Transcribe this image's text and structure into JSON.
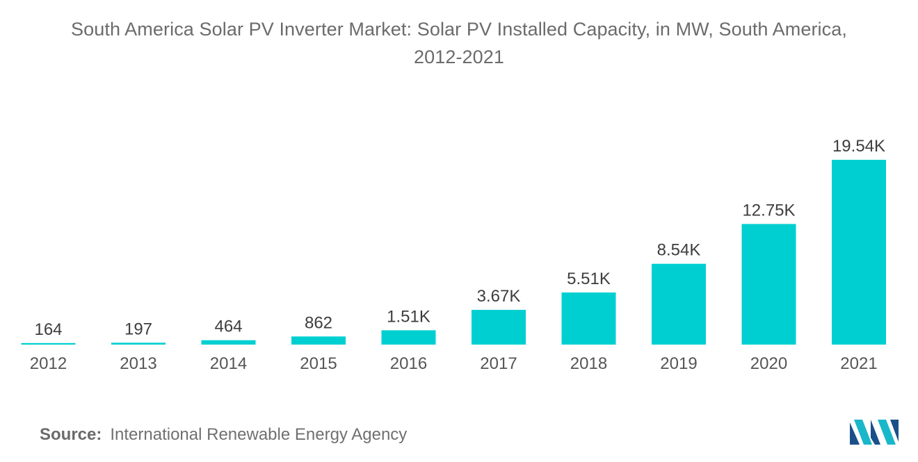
{
  "title": {
    "line1": "South America Solar PV Inverter Market: Solar PV Installed Capacity, in MW, South America,",
    "line2": "2012-2021"
  },
  "source": {
    "label": "Source:",
    "text": "International Renewable Energy Agency"
  },
  "colors": {
    "bar": "#00CFD1",
    "logo_dark": "#1b4f8a",
    "logo_light": "#19b7c9"
  },
  "logo_icon": "mordor-intelligence-logo",
  "chart_data": {
    "type": "bar",
    "title": "South America Solar PV Inverter Market: Solar PV Installed Capacity, in MW, South America, 2012-2021",
    "xlabel": "",
    "ylabel": "",
    "categories": [
      "2012",
      "2013",
      "2014",
      "2015",
      "2016",
      "2017",
      "2018",
      "2019",
      "2020",
      "2021"
    ],
    "values": [
      164,
      197,
      464,
      862,
      1510,
      3670,
      5510,
      8540,
      12750,
      19540
    ],
    "data_labels": [
      "164",
      "197",
      "464",
      "862",
      "1.51K",
      "3.67K",
      "5.51K",
      "8.54K",
      "12.75K",
      "19.54K"
    ],
    "ylim": [
      0,
      19540
    ],
    "grid": false,
    "legend": "none"
  }
}
